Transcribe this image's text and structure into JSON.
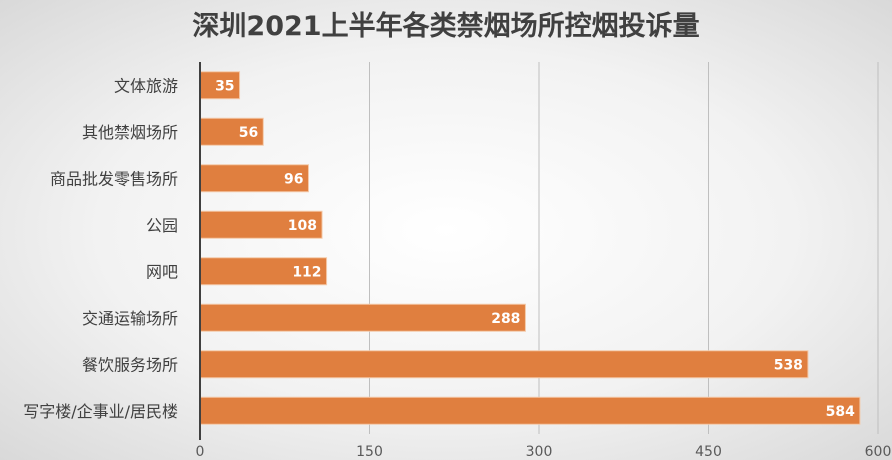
{
  "chart_data": {
    "type": "bar",
    "orientation": "horizontal",
    "title": "深圳2021上半年各类禁烟场所控烟投诉量",
    "xlabel": "",
    "ylabel": "",
    "categories": [
      "文体旅游",
      "其他禁烟场所",
      "商品批发零售场所",
      "公园",
      "网吧",
      "交通运输场所",
      "餐饮服务场所",
      "写字楼/企事业/居民楼"
    ],
    "values": [
      35,
      56,
      96,
      108,
      112,
      288,
      538,
      584
    ],
    "xlim": [
      0,
      600
    ],
    "xticks": [
      0,
      150,
      300,
      450,
      600
    ],
    "grid": true,
    "legend": "none",
    "bar_color": "#e07f3f",
    "data_label_color": "#ffffff"
  }
}
